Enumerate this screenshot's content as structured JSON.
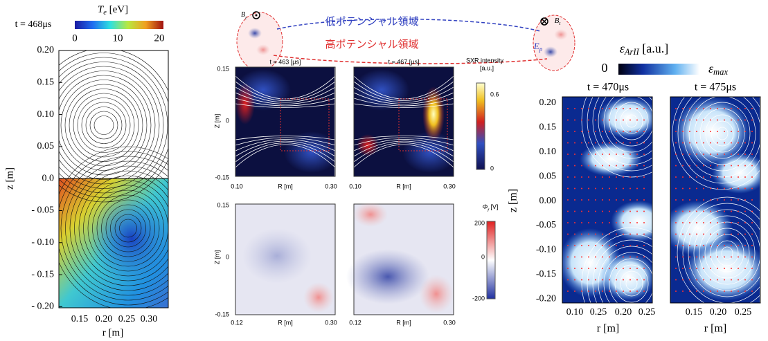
{
  "left": {
    "time": "t = 468μs",
    "cbar_title": {
      "sym": "T",
      "sub": "e",
      "unit": " [eV]"
    },
    "cbar_ticks": [
      "0",
      "10",
      "20"
    ],
    "y_label": "z [m]",
    "x_label": "r [m]",
    "y_ticks": [
      "0.20",
      "0.15",
      "0.10",
      "0.05",
      "0.0",
      "- 0.05",
      "- 0.10",
      "- 0.15",
      "- 0.20"
    ],
    "x_ticks": [
      "0.15",
      "0.20",
      "0.25",
      "0.30"
    ]
  },
  "schematic": {
    "low": "低ポテンシャル領域",
    "high": "高ポテンシャル領域",
    "bt_left": {
      "sym": "B",
      "sub": "t"
    },
    "bt_right": {
      "sym": "B",
      "sub": "t"
    },
    "ep": {
      "sym": "E",
      "sub": "p"
    }
  },
  "sxr": {
    "panels": [
      {
        "title": "t = 463 [μs]",
        "x_ticks": [
          "0.10",
          "0.30"
        ]
      },
      {
        "title": "t = 467 [μs]",
        "x_ticks": [
          "0.10",
          "0.30"
        ]
      }
    ],
    "y_ticks": [
      "0.15",
      "0",
      "-0.15"
    ],
    "y_label": "Z [m]",
    "x_label": "R [m]",
    "cbar_title": "SXR intensity",
    "cbar_unit": "[a.u.]",
    "cbar_ticks": [
      "0.6",
      "0"
    ]
  },
  "potential": {
    "panels": [
      {
        "x_ticks": [
          "0.12",
          "0.30"
        ]
      },
      {
        "x_ticks": [
          "0.12",
          "0.30"
        ]
      }
    ],
    "y_ticks": [
      "0.15",
      "0",
      "-0.15"
    ],
    "y_label": "Z [m]",
    "x_label": "R [m]",
    "cbar_title": {
      "sym": "Φ",
      "sub": "f",
      "unit": " [V]"
    },
    "cbar_ticks": [
      "200",
      "0",
      "-200"
    ]
  },
  "right": {
    "cbar_title": {
      "sym": "ε",
      "sub": "ArII",
      "unit": " [a.u.]"
    },
    "cbar_min": "0",
    "cbar_max": {
      "sym": "ε",
      "sub": "max"
    },
    "panels": [
      {
        "title": "t = 470μs",
        "x_ticks": [
          "0.10",
          "0.25",
          "0.20",
          "0.25"
        ]
      },
      {
        "title": "t = 475μs",
        "x_ticks": [
          "0.15",
          "0.20",
          "0.25"
        ]
      }
    ],
    "y_ticks": [
      "0.20",
      "0.15",
      "0.10",
      "0.05",
      "0.00",
      "-0.05",
      "-0.10",
      "-0.15",
      "-0.20"
    ],
    "y_label": "z [m]",
    "x_label": "r [m]"
  }
}
